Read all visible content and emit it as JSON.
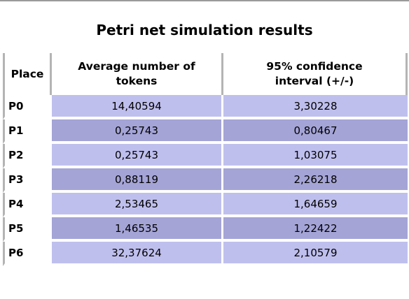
{
  "title": "Petri net simulation results",
  "table": {
    "headers": {
      "place": "Place",
      "avg_line1": "Average number of",
      "avg_line2": "tokens",
      "ci_line1": "95% confidence",
      "ci_line2": "interval (+/-)"
    },
    "rows": [
      {
        "place": "P0",
        "avg": "14,40594",
        "ci": "3,30228"
      },
      {
        "place": "P1",
        "avg": "0,25743",
        "ci": "0,80467"
      },
      {
        "place": "P2",
        "avg": "0,25743",
        "ci": "1,03075"
      },
      {
        "place": "P3",
        "avg": "0,88119",
        "ci": "2,26218"
      },
      {
        "place": "P4",
        "avg": "2,53465",
        "ci": "1,64659"
      },
      {
        "place": "P5",
        "avg": "1,46535",
        "ci": "1,22422"
      },
      {
        "place": "P6",
        "avg": "32,37624",
        "ci": "2,10579"
      }
    ]
  },
  "colors": {
    "row_light": "#bfbfee",
    "row_dark": "#a4a4d7",
    "header_border": "#b4b4b4"
  }
}
